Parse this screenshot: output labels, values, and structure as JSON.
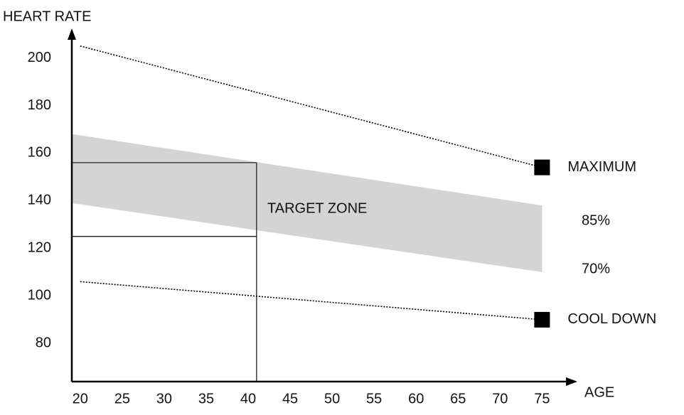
{
  "chart_data": {
    "type": "line",
    "y_label": "HEART RATE",
    "x_label": "AGE",
    "xlim": [
      19,
      77
    ],
    "ylim": [
      64,
      210
    ],
    "xticks": [
      20,
      25,
      30,
      35,
      40,
      45,
      50,
      55,
      60,
      65,
      70,
      75
    ],
    "yticks": [
      80,
      100,
      120,
      140,
      160,
      180,
      200
    ],
    "grid": false,
    "series": [
      {
        "name": "MAXIMUM",
        "color": "#000000",
        "x": [
          20,
          75
        ],
        "values": [
          205,
          154
        ]
      },
      {
        "name": "COOL DOWN",
        "color": "#000000",
        "x": [
          20,
          75
        ],
        "values": [
          106,
          90
        ]
      }
    ],
    "band": {
      "x": [
        19,
        75
      ],
      "upper": [
        168,
        138
      ],
      "lower": [
        139,
        110
      ],
      "upper_label": "85%",
      "lower_label": "70%",
      "color": "#d4d4d4"
    },
    "target": {
      "label": "TARGET ZONE",
      "age": 41,
      "upper": 156,
      "lower": 125
    }
  }
}
